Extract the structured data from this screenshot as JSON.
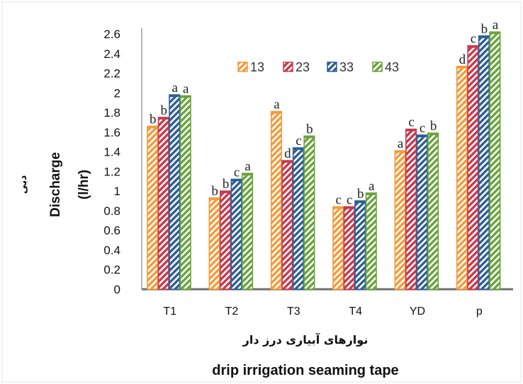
{
  "chart_data": {
    "type": "bar",
    "categories": [
      "T1",
      "T2",
      "T3",
      "T4",
      "YD",
      "p"
    ],
    "series": [
      {
        "name": "13",
        "color": "#f39a3a",
        "values": [
          1.66,
          0.93,
          1.81,
          0.84,
          1.41,
          2.27
        ],
        "labels": [
          "b",
          "b",
          "a",
          "c",
          "a",
          "d"
        ]
      },
      {
        "name": "23",
        "color": "#c63a4e",
        "values": [
          1.75,
          1.0,
          1.31,
          0.84,
          1.63,
          2.48
        ],
        "labels": [
          "b",
          "b",
          "d",
          "c",
          "c",
          "c"
        ]
      },
      {
        "name": "33",
        "color": "#2f5e96",
        "values": [
          1.98,
          1.12,
          1.44,
          0.9,
          1.57,
          2.58
        ],
        "labels": [
          "a",
          "c",
          "c",
          "b",
          "c",
          "b"
        ]
      },
      {
        "name": "43",
        "color": "#6aa33d",
        "values": [
          1.97,
          1.18,
          1.56,
          0.98,
          1.59,
          2.62
        ],
        "labels": [
          "a",
          "a",
          "b",
          "a",
          "b",
          "a"
        ]
      }
    ],
    "yticks": [
      "0",
      "0.2",
      "0.4",
      "0.6",
      "0.8",
      "1",
      "1.2",
      "1.4",
      "1.6",
      "1.8",
      "2",
      "2.2",
      "2.4",
      "2.6"
    ],
    "ylim": [
      0,
      2.6
    ],
    "ylabel_fa": "دبی",
    "ylabel_line1": "Discharge",
    "ylabel_line2": "(l/hr)",
    "xlabel_fa": "نوارهای آبیاری درز دار",
    "xlabel": "drip irrigation seaming tape",
    "legend_position": "top-right",
    "grid": false
  }
}
